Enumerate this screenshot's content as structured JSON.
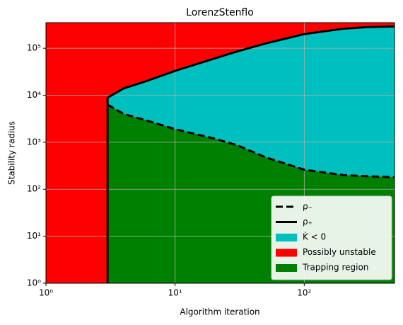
{
  "chart_data": {
    "type": "line",
    "title": "LorenzStenflo",
    "x_label": "Algorithm iteration",
    "y_label": "Stability radius",
    "x_log": true,
    "y_log": true,
    "grid": true,
    "legend": "lower right",
    "xlim": [
      1,
      500
    ],
    "ylim": [
      1,
      350000
    ],
    "xticks": [
      {
        "value": 1,
        "label": "10⁰"
      },
      {
        "value": 10,
        "label": "10¹"
      },
      {
        "value": 100,
        "label": "10²"
      }
    ],
    "yticks": [
      {
        "value": 1,
        "label": "10⁰"
      },
      {
        "value": 10,
        "label": "10¹"
      },
      {
        "value": 100,
        "label": "10²"
      },
      {
        "value": 1000,
        "label": "10³"
      },
      {
        "value": 10000,
        "label": "10⁴"
      },
      {
        "value": 100000,
        "label": "10⁵"
      }
    ],
    "x": [
      3,
      4,
      6,
      10,
      20,
      30,
      50,
      100,
      200,
      300,
      500
    ],
    "series": [
      {
        "name": "ρ₋",
        "color": "#000000",
        "dashed": true,
        "values": [
          6300,
          4000,
          2900,
          1900,
          1200,
          870,
          480,
          260,
          200,
          190,
          180
        ]
      },
      {
        "name": "ρ₊",
        "color": "#000000",
        "dashed": false,
        "values": [
          8900,
          14000,
          20000,
          33000,
          60000,
          85000,
          126000,
          200000,
          260000,
          280000,
          290000
        ]
      }
    ],
    "regions": [
      {
        "name": "K̇ < 0",
        "color": "#00bfbf"
      },
      {
        "name": "Possibly unstable",
        "color": "#ff0000"
      },
      {
        "name": "Trapping region",
        "color": "#008000"
      }
    ]
  }
}
